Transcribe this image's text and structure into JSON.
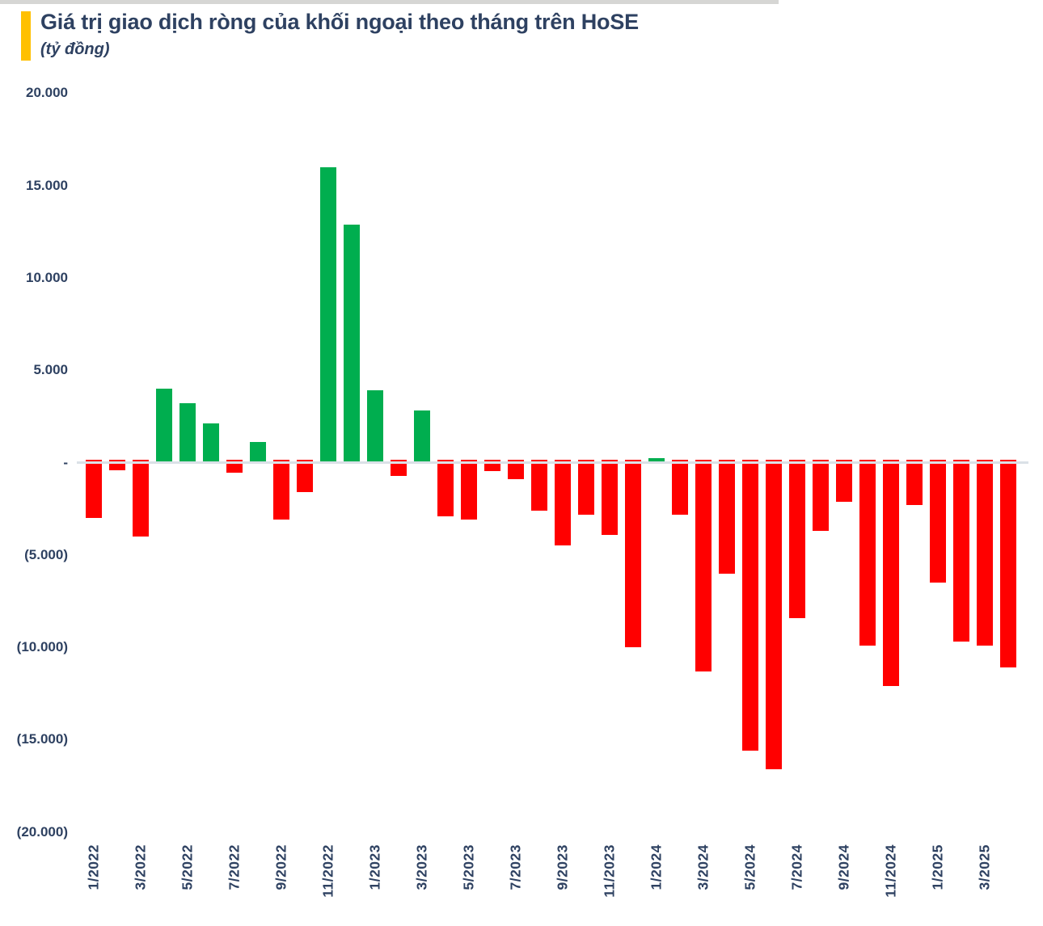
{
  "header": {
    "title": "Giá trị giao dịch ròng của khối ngoại theo tháng trên HoSE",
    "subtitle": "(tỷ đồng)",
    "accent_color": "#FFC000",
    "text_color": "#2E4161"
  },
  "chart_data": {
    "type": "bar",
    "title": "Giá trị giao dịch ròng của khối ngoại theo tháng trên HoSE",
    "unit": "tỷ đồng",
    "categories": [
      "1/2022",
      "2/2022",
      "3/2022",
      "4/2022",
      "5/2022",
      "6/2022",
      "7/2022",
      "8/2022",
      "9/2022",
      "10/2022",
      "11/2022",
      "12/2022",
      "1/2023",
      "2/2023",
      "3/2023",
      "4/2023",
      "5/2023",
      "6/2023",
      "7/2023",
      "8/2023",
      "9/2023",
      "10/2023",
      "11/2023",
      "12/2023",
      "1/2024",
      "2/2024",
      "3/2024",
      "4/2024",
      "5/2024",
      "6/2024",
      "7/2024",
      "8/2024",
      "9/2024",
      "10/2024",
      "11/2024",
      "12/2024",
      "1/2025",
      "2/2025",
      "3/2025",
      "4/2025"
    ],
    "values": [
      -3000,
      -400,
      -4000,
      4000,
      3200,
      2100,
      -550,
      1100,
      -3100,
      -1600,
      16000,
      12900,
      3900,
      -700,
      2800,
      -2900,
      -3100,
      -450,
      -900,
      -2600,
      -4500,
      -2800,
      -3900,
      -10000,
      250,
      -2800,
      -11300,
      -6000,
      -15600,
      -16600,
      -8400,
      -3700,
      -2100,
      -9900,
      -12100,
      -2300,
      -6500,
      -9700,
      -9900,
      -11100
    ],
    "colors": {
      "positive": "#00AE4F",
      "negative": "#FF0000",
      "axis_line": "#dbe1e7"
    },
    "y_axis": {
      "ticks": [
        {
          "label": "20.000",
          "value": 20000
        },
        {
          "label": "15.000",
          "value": 15000
        },
        {
          "label": "10.000",
          "value": 10000
        },
        {
          "label": "5.000",
          "value": 5000
        },
        {
          "label": "-",
          "value": 0
        },
        {
          "label": "(5.000)",
          "value": -5000
        },
        {
          "label": "(10.000)",
          "value": -10000
        },
        {
          "label": "(15.000)",
          "value": -15000
        },
        {
          "label": "(20.000)",
          "value": -20000
        }
      ],
      "range": [
        -20000,
        20000
      ]
    },
    "x_axis": {
      "label_every_n_months": 2
    },
    "legend": null,
    "grid": "zero-baseline-only"
  }
}
